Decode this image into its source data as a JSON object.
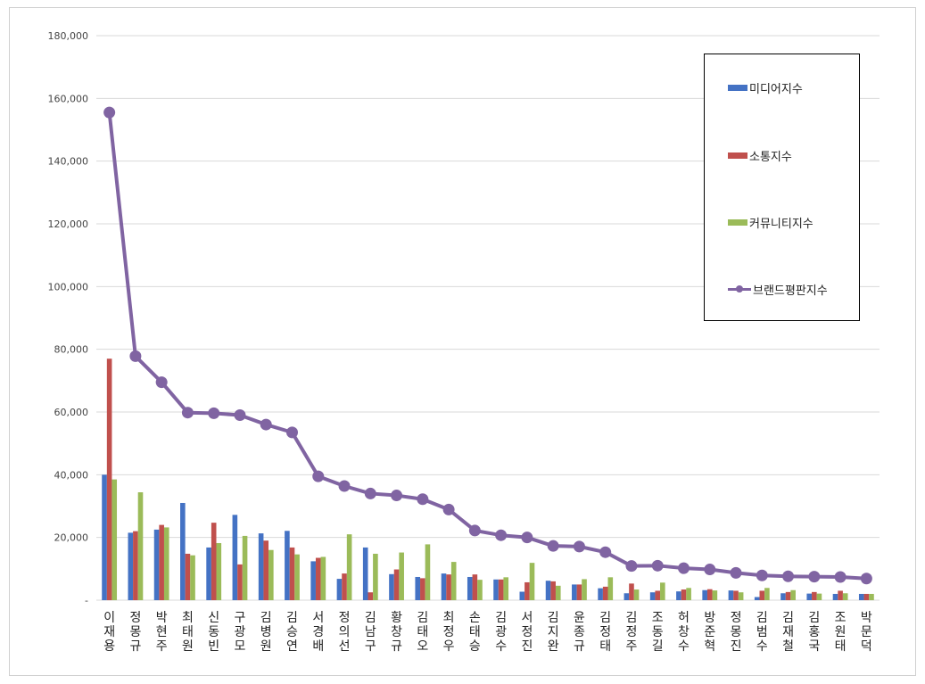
{
  "chart_data": {
    "type": "bar",
    "title": "",
    "xlabel": "",
    "ylabel": "",
    "ylim": [
      0,
      180000
    ],
    "yticks": [
      "-",
      "20,000",
      "40,000",
      "60,000",
      "80,000",
      "100,000",
      "120,000",
      "140,000",
      "160,000",
      "180,000"
    ],
    "grid": true,
    "legend_position": "top-right",
    "categories": [
      "이재용",
      "정몽규",
      "박현주",
      "최태원",
      "신동빈",
      "구광모",
      "김병원",
      "김승연",
      "서경배",
      "정의선",
      "김남구",
      "황창규",
      "김태오",
      "최정우",
      "손태승",
      "김광수",
      "서정진",
      "김지완",
      "윤종규",
      "김정태",
      "김정주",
      "조동길",
      "허창수",
      "방준혁",
      "정몽진",
      "김범수",
      "김재철",
      "김홍국",
      "조원태",
      "박문덕"
    ],
    "series": [
      {
        "name": "미디어지수",
        "type": "bar",
        "color": "#4472c4",
        "values": [
          40000,
          21500,
          22500,
          31000,
          16800,
          27200,
          21300,
          22100,
          12400,
          6800,
          16800,
          8300,
          7400,
          8500,
          7400,
          6600,
          2700,
          6200,
          5000,
          3800,
          2200,
          2500,
          2800,
          3200,
          3100,
          1000,
          2200,
          2100,
          2000,
          2000
        ]
      },
      {
        "name": "소통지수",
        "type": "bar",
        "color": "#c0504d",
        "values": [
          77000,
          22000,
          24000,
          14800,
          24700,
          11400,
          19000,
          16800,
          13500,
          8500,
          2500,
          9800,
          7000,
          8200,
          8200,
          6600,
          5700,
          6000,
          5000,
          4300,
          5300,
          3000,
          3400,
          3500,
          3000,
          3000,
          2600,
          2600,
          3000,
          2000
        ]
      },
      {
        "name": "커뮤니티지수",
        "type": "bar",
        "color": "#9bbb59",
        "values": [
          38500,
          34400,
          23200,
          14300,
          18200,
          20500,
          16000,
          14600,
          13800,
          21000,
          14800,
          15200,
          17800,
          12200,
          6500,
          7300,
          11900,
          4600,
          6700,
          7300,
          3400,
          5600,
          3900,
          3100,
          2500,
          3900,
          3200,
          2100,
          2200,
          2000
        ]
      },
      {
        "name": "브랜드평판지수",
        "type": "line",
        "color": "#8064a2",
        "values": [
          155500,
          77800,
          69500,
          59800,
          59600,
          59000,
          56000,
          53500,
          39500,
          36400,
          34000,
          33400,
          32200,
          28900,
          22200,
          20700,
          20000,
          17300,
          17100,
          15300,
          10900,
          11000,
          10200,
          9800,
          8700,
          7900,
          7600,
          7500,
          7400,
          6900
        ]
      }
    ]
  }
}
